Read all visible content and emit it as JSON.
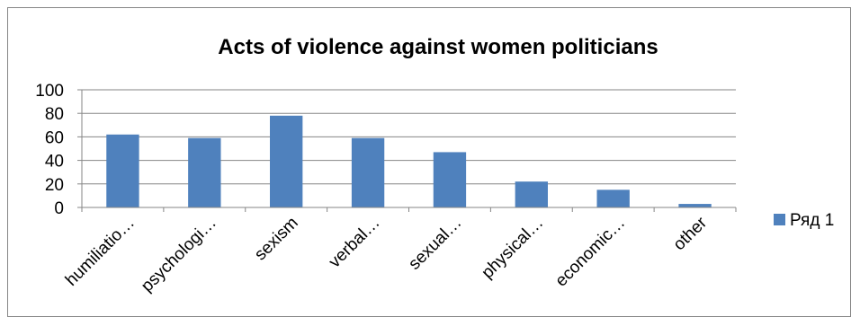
{
  "chart_data": {
    "type": "bar",
    "title": "Acts of violence against women politicians",
    "categories": [
      "humiliatio…",
      "psychologi…",
      "sexism",
      "verbal…",
      "sexual…",
      "physical…",
      "economic…",
      "other"
    ],
    "series": [
      {
        "name": "Ряд 1",
        "values": [
          62,
          59,
          78,
          59,
          47,
          22,
          15,
          3
        ],
        "color": "#4F81BD"
      }
    ],
    "ylim": [
      0,
      100
    ],
    "yticks": [
      0,
      20,
      40,
      60,
      80,
      100
    ],
    "grid": true,
    "legend": "right",
    "xlabel": "",
    "ylabel": ""
  }
}
